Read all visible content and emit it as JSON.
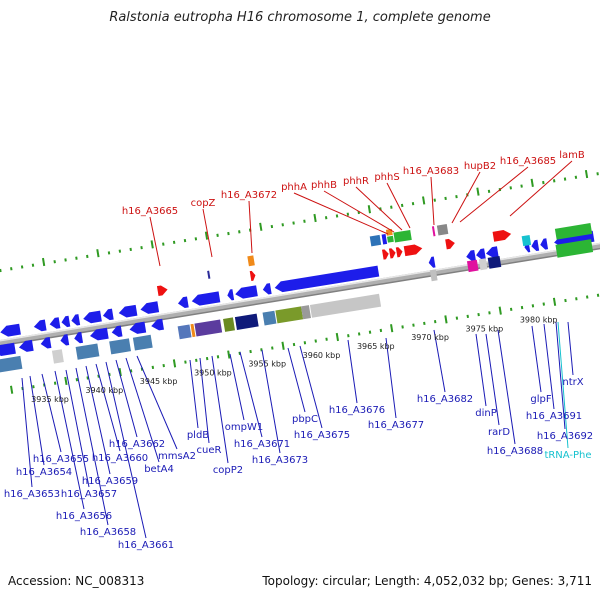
{
  "title": "Ralstonia eutropha H16 chromosome 1, complete genome",
  "footer": {
    "accession": "Accession: NC_008313",
    "topology": "Topology: circular; Length: 4,052,032 bp; Genes: 3,711"
  },
  "colors": {
    "gene_blue": "#1d1dea",
    "rrna_red": "#ee1111",
    "label_red": "#cc1111",
    "label_blue": "#1a1ab5",
    "label_cyan": "#17c2cf",
    "tick_green": "#2f9a22",
    "backbone": "#b0b0b0"
  },
  "scale_labels": [
    "3935 kbp",
    "3940 kbp",
    "3945 kbp",
    "3950 kbp",
    "3955 kbp",
    "3960 kbp",
    "3965 kbp",
    "3970 kbp",
    "3975 kbp",
    "3980 kbp"
  ],
  "top_labels": [
    "h16_A3665",
    "copZ",
    "h16_A3672",
    "phhA",
    "phhB",
    "phhR",
    "phhS",
    "h16_A3683",
    "hupB2",
    "h16_A3685",
    "lamB"
  ],
  "bottom_labels": [
    "h16_A3653",
    "h16_A3654",
    "h16_A3655",
    "h16_A3656",
    "h16_A3657",
    "h16_A3658",
    "h16_A3659",
    "h16_A3660",
    "h16_A3661",
    "h16_A3662",
    "betA4",
    "mmsA2",
    "pldB",
    "cueR",
    "copP2",
    "ompW1",
    "h16_A3671",
    "h16_A3673",
    "pbpC",
    "h16_A3675",
    "h16_A3676",
    "h16_A3677",
    "h16_A3682",
    "dinP",
    "rarD",
    "h16_A3688",
    "glpF",
    "h16_A3691",
    "h16_A3692",
    "ntrX",
    "tRNA-Phe"
  ]
}
